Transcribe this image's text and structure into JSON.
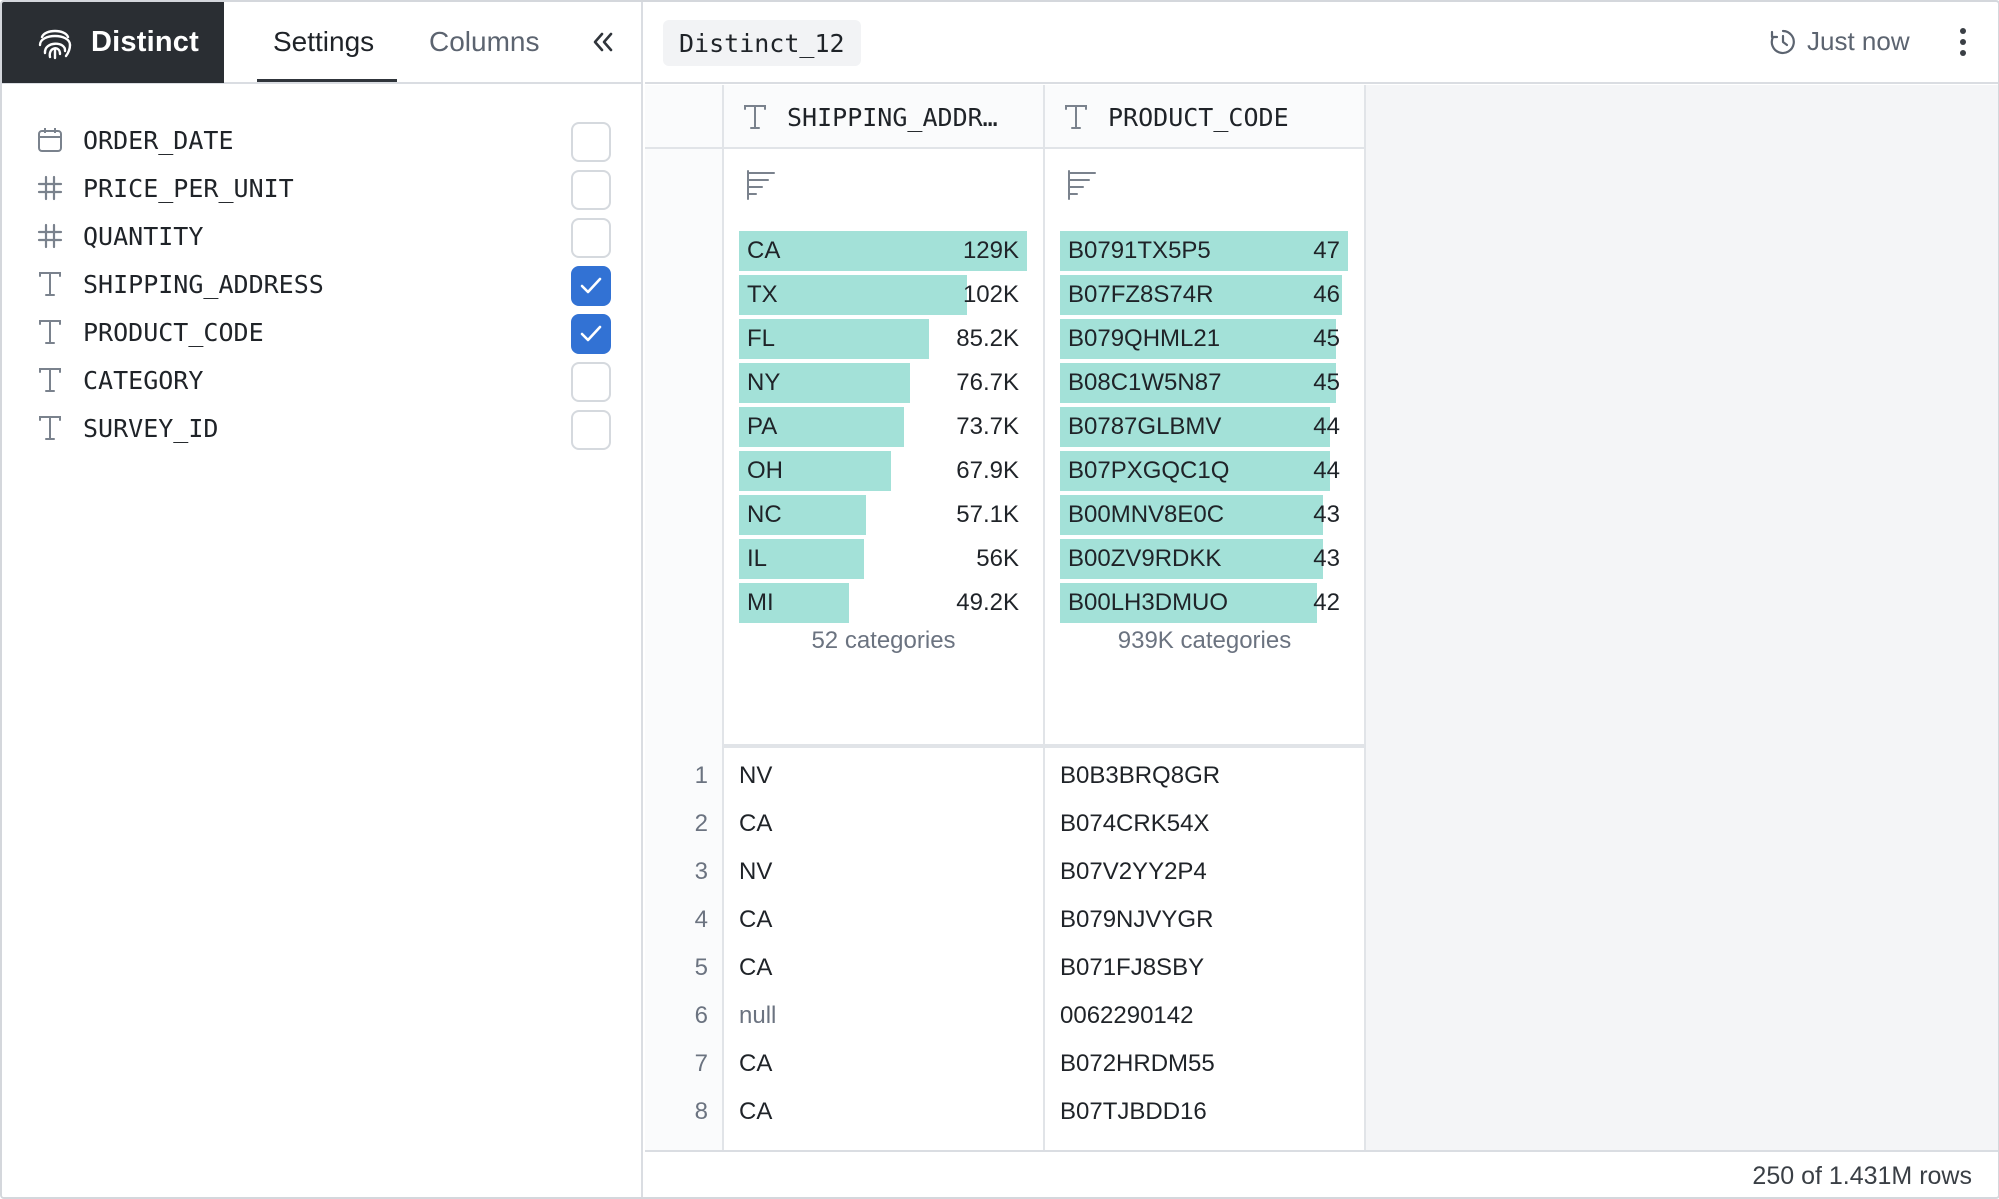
{
  "brand": {
    "name": "Distinct",
    "logo_icon": "fingerprint-icon"
  },
  "tabs": {
    "settings": "Settings",
    "columns": "Columns",
    "active": "Settings"
  },
  "columns_list": [
    {
      "name": "ORDER_DATE",
      "type_icon": "calendar-icon",
      "checked": false
    },
    {
      "name": "PRICE_PER_UNIT",
      "type_icon": "hash-icon",
      "checked": false
    },
    {
      "name": "QUANTITY",
      "type_icon": "hash-icon",
      "checked": false
    },
    {
      "name": "SHIPPING_ADDRESS",
      "type_icon": "text-type-icon",
      "checked": true
    },
    {
      "name": "PRODUCT_CODE",
      "type_icon": "text-type-icon",
      "checked": true
    },
    {
      "name": "CATEGORY",
      "type_icon": "text-type-icon",
      "checked": false
    },
    {
      "name": "SURVEY_ID",
      "type_icon": "text-type-icon",
      "checked": false
    }
  ],
  "header": {
    "dataset": "Distinct_12",
    "refresh_label": "Just now"
  },
  "grid": {
    "columns": [
      {
        "title": "SHIPPING_ADDR…",
        "summary": {
          "categories_label": "52 categories",
          "bars": [
            {
              "label": "CA",
              "value_label": "129K",
              "value": 129000
            },
            {
              "label": "TX",
              "value_label": "102K",
              "value": 102000
            },
            {
              "label": "FL",
              "value_label": "85.2K",
              "value": 85200
            },
            {
              "label": "NY",
              "value_label": "76.7K",
              "value": 76700
            },
            {
              "label": "PA",
              "value_label": "73.7K",
              "value": 73700
            },
            {
              "label": "OH",
              "value_label": "67.9K",
              "value": 67900
            },
            {
              "label": "NC",
              "value_label": "57.1K",
              "value": 57100
            },
            {
              "label": "IL",
              "value_label": "56K",
              "value": 56000
            },
            {
              "label": "MI",
              "value_label": "49.2K",
              "value": 49200
            }
          ]
        },
        "rows": [
          "NV",
          "CA",
          "NV",
          "CA",
          "CA",
          "null",
          "CA",
          "CA"
        ]
      },
      {
        "title": "PRODUCT_CODE",
        "summary": {
          "categories_label": "939K categories",
          "bars": [
            {
              "label": "B0791TX5P5",
              "value_label": "47",
              "value": 47
            },
            {
              "label": "B07FZ8S74R",
              "value_label": "46",
              "value": 46
            },
            {
              "label": "B079QHML21",
              "value_label": "45",
              "value": 45
            },
            {
              "label": "B08C1W5N87",
              "value_label": "45",
              "value": 45
            },
            {
              "label": "B0787GLBMV",
              "value_label": "44",
              "value": 44
            },
            {
              "label": "B07PXGQC1Q",
              "value_label": "44",
              "value": 44
            },
            {
              "label": "B00MNV8E0C",
              "value_label": "43",
              "value": 43
            },
            {
              "label": "B00ZV9RDKK",
              "value_label": "43",
              "value": 43
            },
            {
              "label": "B00LH3DMUO",
              "value_label": "42",
              "value": 42
            }
          ]
        },
        "rows": [
          "B0B3BRQ8GR",
          "B074CRK54X",
          "B07V2YY2P4",
          "B079NJVYGR",
          "B071FJ8SBY",
          "0062290142",
          "B072HRDM55",
          "B07TJBDD16"
        ]
      }
    ],
    "row_numbers": [
      "1",
      "2",
      "3",
      "4",
      "5",
      "6",
      "7",
      "8"
    ]
  },
  "footer": {
    "rows_info": "250 of 1.431M rows"
  },
  "colors": {
    "accent": "#3272d4",
    "bar": "#a3e1d8",
    "brand_bg": "#2a2e33"
  }
}
